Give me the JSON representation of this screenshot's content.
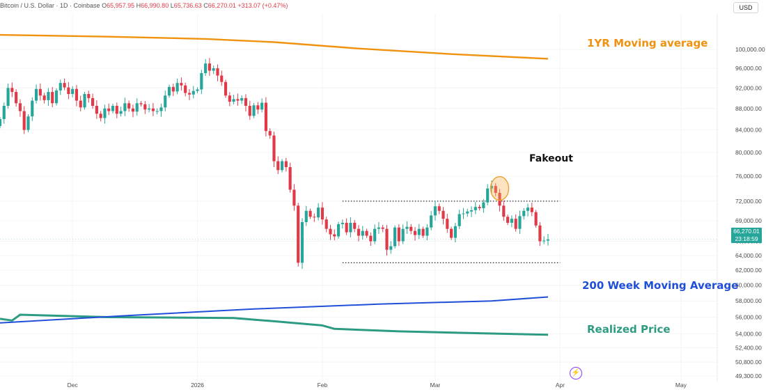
{
  "header": {
    "symbol": "Bitcoin / U.S. Dollar · 1D · Coinbase",
    "open_label": "O",
    "open": "65,957.95",
    "high_label": "H",
    "high": "66,990.80",
    "low_label": "L",
    "low": "65,736.63",
    "close_label": "C",
    "close": "66,270.01",
    "change": "+313.07 (+0.47%)",
    "currency": "USD"
  },
  "price_tag": {
    "price": "66,270.01",
    "countdown": "23:18:59",
    "value": 66270.01
  },
  "colors": {
    "up": "#26a69a",
    "down": "#e03a48",
    "ma1yr": "#f0920f",
    "ma200w": "#1f4fd8",
    "realized": "#2d9b82"
  },
  "icons": {
    "watermark": "tradingview-logo-icon"
  },
  "chart_data": {
    "type": "line",
    "title": "Bitcoin / U.S. Dollar · 1D · Coinbase",
    "y_scale": "log",
    "ylim": [
      49300,
      104000
    ],
    "xlim": [
      "2025-11-13",
      "2026-05-10"
    ],
    "x_ticks": [
      {
        "date": "2025-12-01",
        "label": "Dec"
      },
      {
        "date": "2026-01-01",
        "label": "2026"
      },
      {
        "date": "2026-02-01",
        "label": "Feb"
      },
      {
        "date": "2026-03-01",
        "label": "Mar"
      },
      {
        "date": "2026-04-01",
        "label": "Apr"
      },
      {
        "date": "2026-05-01",
        "label": "May"
      }
    ],
    "y_ticks": [
      100000,
      96000,
      92000,
      88000,
      84000,
      80000,
      76000,
      72000,
      69000,
      66000,
      64000,
      62000,
      60000,
      58000,
      56000,
      54000,
      52400,
      50800,
      49300
    ],
    "y_tick_labels": [
      "100,000.00",
      "96,000.00",
      "92,000.00",
      "88,000.00",
      "84,000.00",
      "80,000.00",
      "76,000.00",
      "72,000.00",
      "69,000.00",
      "66,000.00",
      "64,000.00",
      "62,000.00",
      "60,000.00",
      "58,000.00",
      "56,000.00",
      "54,000.00",
      "52,400.00",
      "50,800.00",
      "49,300.00"
    ],
    "candles_start": "2025-11-13",
    "candles_close": [
      86000,
      88500,
      92000,
      91200,
      89000,
      87500,
      84000,
      86500,
      89500,
      91800,
      90500,
      89600,
      91200,
      89000,
      91500,
      93000,
      92100,
      90800,
      91800,
      89500,
      88200,
      90800,
      90000,
      88500,
      87000,
      86200,
      88000,
      87500,
      88500,
      87000,
      87500,
      89000,
      88000,
      87400,
      89000,
      88800,
      87800,
      88000,
      87500,
      87500,
      88200,
      90500,
      92200,
      91300,
      93000,
      92500,
      91000,
      90700,
      91400,
      91700,
      95000,
      97000,
      95500,
      96000,
      94500,
      93200,
      90500,
      89300,
      89800,
      89500,
      90000,
      88500,
      86600,
      88600,
      87800,
      89100,
      83800,
      83000,
      78500,
      77000,
      78500,
      77500,
      73800,
      71300,
      63000,
      68800,
      70500,
      69600,
      69500,
      71000,
      69200,
      67800,
      67000,
      66700,
      68500,
      68700,
      67300,
      68700,
      67800,
      66800,
      67500,
      66800,
      66000,
      67800,
      68000,
      67800,
      64800,
      65300,
      68000,
      66000,
      67800,
      68100,
      67500,
      66900,
      67800,
      66800,
      68000,
      69800,
      71200,
      70500,
      69300,
      67800,
      66500,
      68200,
      70000,
      70100,
      70400,
      70600,
      71100,
      70900,
      71800,
      74000,
      74400,
      73300,
      71300,
      69600,
      68700,
      69300,
      67800,
      69700,
      70500,
      71000,
      70300,
      68300,
      66000,
      66100,
      66270
    ],
    "ma_1yr": [
      {
        "x": "2025-11-13",
        "y": 103200
      },
      {
        "x": "2025-12-10",
        "y": 102800
      },
      {
        "x": "2026-01-03",
        "y": 102300
      },
      {
        "x": "2026-01-20",
        "y": 101600
      },
      {
        "x": "2026-02-10",
        "y": 100200
      },
      {
        "x": "2026-03-05",
        "y": 99000
      },
      {
        "x": "2026-03-29",
        "y": 98000
      }
    ],
    "ma_200w": [
      {
        "x": "2025-11-13",
        "y": 55300
      },
      {
        "x": "2025-12-15",
        "y": 56200
      },
      {
        "x": "2026-01-15",
        "y": 57000
      },
      {
        "x": "2026-02-15",
        "y": 57600
      },
      {
        "x": "2026-03-15",
        "y": 58000
      },
      {
        "x": "2026-03-29",
        "y": 58500
      }
    ],
    "realized_price": [
      {
        "x": "2025-11-13",
        "y": 55800
      },
      {
        "x": "2025-11-16",
        "y": 55600
      },
      {
        "x": "2025-11-18",
        "y": 56300
      },
      {
        "x": "2025-12-10",
        "y": 56000
      },
      {
        "x": "2026-01-10",
        "y": 55900
      },
      {
        "x": "2026-01-20",
        "y": 55500
      },
      {
        "x": "2026-02-01",
        "y": 55000
      },
      {
        "x": "2026-02-04",
        "y": 54600
      },
      {
        "x": "2026-02-20",
        "y": 54300
      },
      {
        "x": "2026-03-10",
        "y": 54100
      },
      {
        "x": "2026-03-29",
        "y": 53900
      }
    ],
    "range_top": {
      "x1": "2026-02-06",
      "x2": "2026-04-01",
      "y": 72000
    },
    "range_bottom": {
      "x1": "2026-02-06",
      "x2": "2026-04-01",
      "y": 63000
    },
    "fakeout_marker": {
      "x": "2026-03-17",
      "y": 74000
    },
    "annotations": {
      "ma_1yr": "1YR Moving average",
      "ma_200w": "200 Week Moving Average",
      "realized": "Realized Price",
      "fakeout": "Fakeout"
    }
  }
}
